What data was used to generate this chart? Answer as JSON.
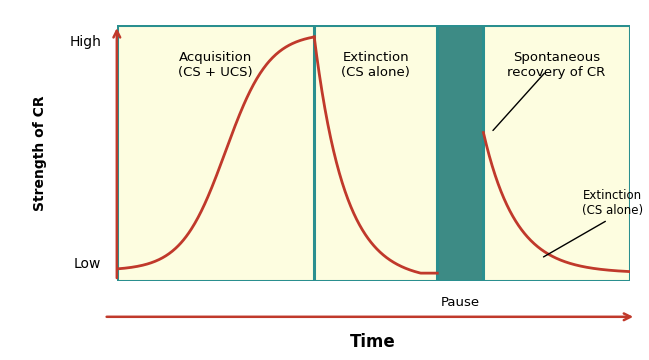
{
  "fig_width": 6.49,
  "fig_height": 3.6,
  "dpi": 100,
  "bg_color": "#ffffff",
  "plot_bg_yellow": "#fdfde0",
  "plot_bg_teal": "#3d8b85",
  "border_color": "#2a8f8f",
  "line_color": "#c0392b",
  "arrow_color": "#c0392b",
  "annotation_color": "#000000",
  "section_boundaries": [
    0.0,
    0.385,
    0.625,
    0.715,
    1.0
  ],
  "xlabel": "Time",
  "ylabel": "Strength of CR",
  "section_labels": [
    "Acquisition\n(CS + UCS)",
    "Extinction\n(CS alone)",
    "Spontaneous\nrecovery of CR"
  ],
  "pause_label": "Pause",
  "high_label": "High",
  "low_label": "Low",
  "ext_cs_alone": "Extinction\n(CS alone)",
  "line_width": 2.0,
  "border_lw": 2.2
}
